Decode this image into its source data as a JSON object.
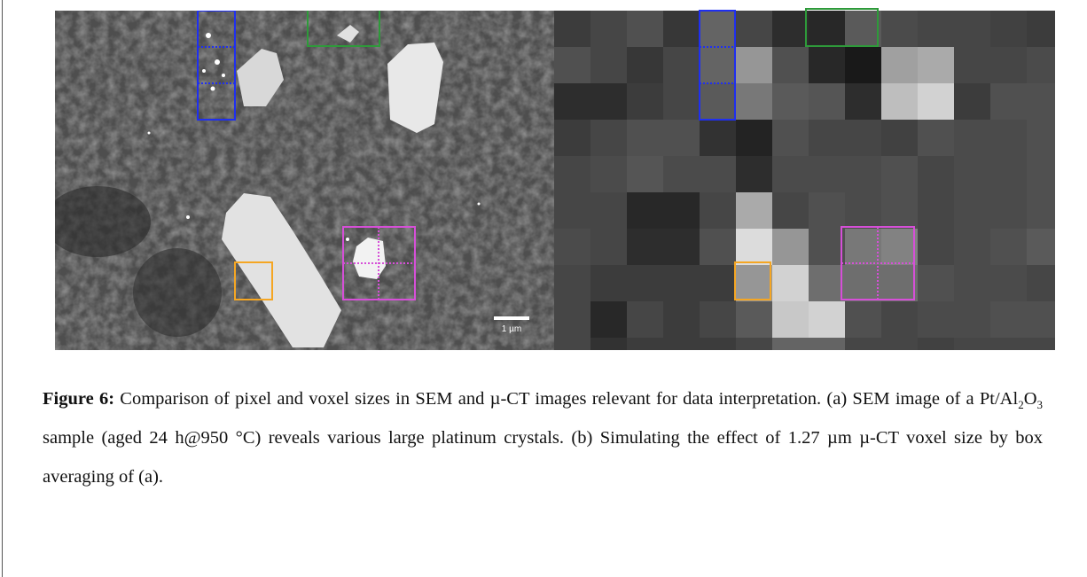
{
  "image": {
    "scale_bar": "1 µm"
  },
  "caption": {
    "label": "Figure 6:",
    "text": [
      " Comparison of pixel and voxel sizes in SEM and µ-CT images relevant for data interpretation. (a) SEM image of a Pt/Al",
      "O",
      " sample (aged 24 h@950 °C) reveals various large platinum crystals. (b) Simulating the effect of 1.27 µm µ-CT voxel size by box averaging of (a)."
    ],
    "subscripts": [
      "2",
      "3"
    ]
  }
}
